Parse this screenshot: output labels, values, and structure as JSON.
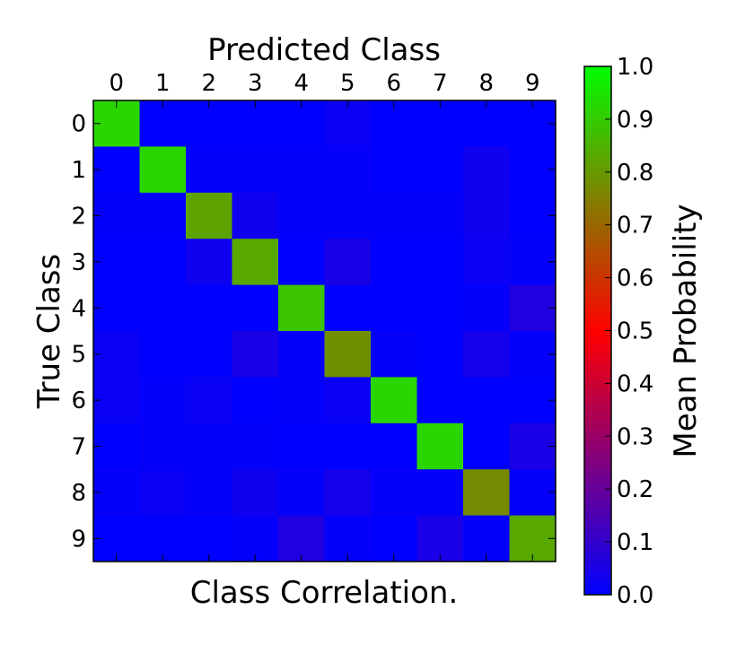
{
  "chart_data": {
    "type": "heatmap",
    "title": "Predicted Class",
    "xlabel": "Predicted Class",
    "ylabel": "True Class",
    "caption": "Class Correlation.",
    "x_categories": [
      "0",
      "1",
      "2",
      "3",
      "4",
      "5",
      "6",
      "7",
      "8",
      "9"
    ],
    "y_categories": [
      "0",
      "1",
      "2",
      "3",
      "4",
      "5",
      "6",
      "7",
      "8",
      "9"
    ],
    "values": [
      [
        0.92,
        0.0,
        0.0,
        0.0,
        0.0,
        0.02,
        0.0,
        0.0,
        0.0,
        0.0
      ],
      [
        0.0,
        0.92,
        0.01,
        0.01,
        0.01,
        0.01,
        0.0,
        0.0,
        0.03,
        0.0
      ],
      [
        0.01,
        0.01,
        0.82,
        0.03,
        0.01,
        0.01,
        0.01,
        0.01,
        0.03,
        0.0
      ],
      [
        0.0,
        0.0,
        0.03,
        0.83,
        0.0,
        0.05,
        0.0,
        0.0,
        0.02,
        0.01
      ],
      [
        0.0,
        0.0,
        0.0,
        0.0,
        0.88,
        0.0,
        0.0,
        0.0,
        0.01,
        0.06
      ],
      [
        0.02,
        0.0,
        0.0,
        0.05,
        0.01,
        0.78,
        0.01,
        0.0,
        0.04,
        0.01
      ],
      [
        0.02,
        0.01,
        0.02,
        0.0,
        0.01,
        0.02,
        0.92,
        0.0,
        0.0,
        0.0
      ],
      [
        0.0,
        0.01,
        0.01,
        0.01,
        0.0,
        0.0,
        0.0,
        0.92,
        0.0,
        0.05
      ],
      [
        0.01,
        0.02,
        0.01,
        0.03,
        0.01,
        0.04,
        0.01,
        0.01,
        0.77,
        0.01
      ],
      [
        0.0,
        0.0,
        0.0,
        0.01,
        0.06,
        0.01,
        0.0,
        0.05,
        0.01,
        0.83
      ]
    ],
    "colorbar": {
      "label": "Mean Probability",
      "range": [
        0.0,
        1.0
      ],
      "ticks": [
        "0.0",
        "0.1",
        "0.2",
        "0.3",
        "0.4",
        "0.5",
        "0.6",
        "0.7",
        "0.8",
        "0.9",
        "1.0"
      ],
      "colormap": [
        "#0000ff",
        "#ff0000",
        "#00ff00"
      ]
    },
    "grid": false
  }
}
